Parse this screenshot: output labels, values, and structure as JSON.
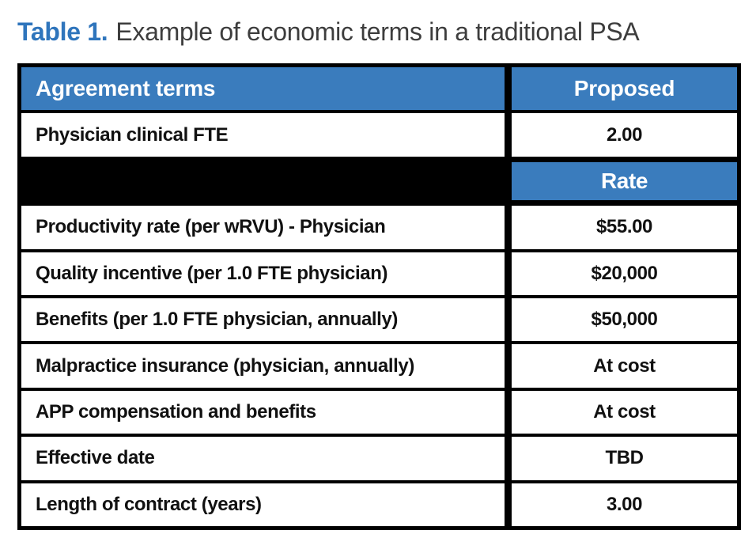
{
  "title": {
    "label": "Table 1.",
    "text": "Example of economic terms in a traditional PSA"
  },
  "colors": {
    "header_blue": "#3a7cbd",
    "title_blue": "#2f75bc",
    "grid_black": "#000000"
  },
  "table": {
    "header": {
      "left": "Agreement terms",
      "right": "Proposed"
    },
    "fte_row": {
      "term": "Physician clinical FTE",
      "value": "2.00"
    },
    "rate_header": "Rate",
    "rows": [
      {
        "term": "Productivity rate (per wRVU) - Physician",
        "value": "$55.00"
      },
      {
        "term": "Quality incentive (per 1.0 FTE physician)",
        "value": "$20,000"
      },
      {
        "term": "Benefits (per 1.0 FTE physician, annually)",
        "value": "$50,000"
      },
      {
        "term": "Malpractice insurance (physician, annually)",
        "value": "At cost"
      },
      {
        "term": "APP compensation and benefits",
        "value": "At cost"
      },
      {
        "term": "Effective date",
        "value": "TBD"
      },
      {
        "term": "Length of contract (years)",
        "value": "3.00"
      }
    ]
  },
  "chart_data": {
    "type": "table",
    "title": "Table 1. Example of economic terms in a traditional PSA",
    "columns": [
      "Agreement terms",
      "Proposed"
    ],
    "sub_header": [
      "",
      "Rate"
    ],
    "rows": [
      [
        "Physician clinical FTE",
        "2.00"
      ],
      [
        "Productivity rate (per wRVU) - Physician",
        "$55.00"
      ],
      [
        "Quality incentive (per 1.0 FTE physician)",
        "$20,000"
      ],
      [
        "Benefits (per 1.0 FTE physician, annually)",
        "$50,000"
      ],
      [
        "Malpractice insurance (physician, annually)",
        "At cost"
      ],
      [
        "APP compensation and benefits",
        "At cost"
      ],
      [
        "Effective date",
        "TBD"
      ],
      [
        "Length of contract (years)",
        "3.00"
      ]
    ]
  }
}
